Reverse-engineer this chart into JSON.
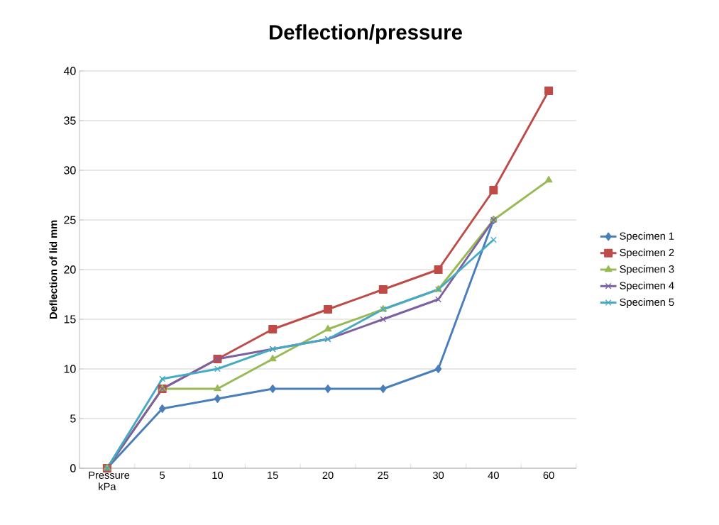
{
  "chart_data": {
    "type": "line",
    "title": "Deflection/pressure",
    "ylabel": "Deflection of lid mm",
    "categories": [
      "Pressure kPa",
      "5",
      "10",
      "15",
      "20",
      "25",
      "30",
      "40",
      "60"
    ],
    "series": [
      {
        "name": "Specimen 1",
        "color": "#4a7ebb",
        "marker": "diamond",
        "values": [
          0,
          6,
          7,
          8,
          8,
          8,
          10,
          25,
          null
        ]
      },
      {
        "name": "Specimen 2",
        "color": "#be4b48",
        "marker": "square",
        "values": [
          0,
          8,
          11,
          14,
          16,
          18,
          20,
          28,
          38
        ]
      },
      {
        "name": "Specimen 3",
        "color": "#98b954",
        "marker": "triangle",
        "values": [
          0,
          8,
          8,
          11,
          14,
          16,
          18,
          25,
          29
        ]
      },
      {
        "name": "Specimen 4",
        "color": "#7d60a0",
        "marker": "cross",
        "values": [
          0,
          8,
          11,
          12,
          13,
          15,
          17,
          25,
          null
        ]
      },
      {
        "name": "Specimen 5",
        "color": "#46aac5",
        "marker": "cross",
        "values": [
          0,
          9,
          10,
          12,
          13,
          16,
          18,
          23,
          null
        ]
      }
    ],
    "ylim": [
      0,
      40
    ],
    "yticks": [
      0,
      5,
      10,
      15,
      20,
      25,
      30,
      35,
      40
    ],
    "grid": "y",
    "legend": "right",
    "line_style": "solid"
  }
}
